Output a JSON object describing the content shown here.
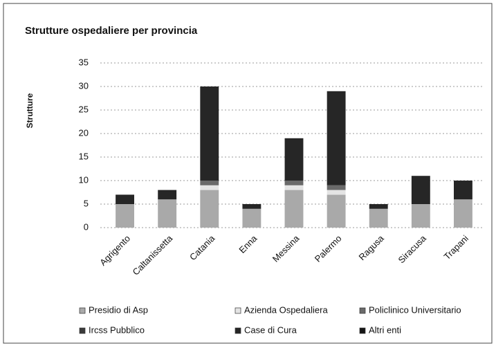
{
  "chart_data": {
    "type": "stacked_bar",
    "title": "Strutture ospedaliere per provincia",
    "y_label": "Strutture",
    "categories": [
      "Agrigento",
      "Caltanissetta",
      "Catania",
      "Enna",
      "Messina",
      "Palermo",
      "Ragusa",
      "Siracusa",
      "Trapani"
    ],
    "series": [
      {
        "name": "Presidio di Asp",
        "color": "#a9a9a9",
        "values": [
          5,
          6,
          8,
          4,
          8,
          7,
          4,
          5,
          6
        ]
      },
      {
        "name": "Azienda Ospedaliera",
        "color": "#e4e4e4",
        "values": [
          0,
          0,
          1,
          0,
          1,
          1,
          0,
          0,
          0
        ]
      },
      {
        "name": "Policlinico Universitario",
        "color": "#6a6a6a",
        "values": [
          0,
          0,
          1,
          0,
          1,
          1,
          0,
          0,
          0
        ]
      },
      {
        "name": "Ircss Pubblico",
        "color": "#3a3a3a",
        "values": [
          0,
          0,
          0,
          0,
          0,
          0,
          0,
          0,
          0
        ]
      },
      {
        "name": "Case di Cura",
        "color": "#262626",
        "values": [
          2,
          2,
          20,
          1,
          9,
          20,
          1,
          6,
          4
        ]
      },
      {
        "name": "Altri enti",
        "color": "#151515",
        "values": [
          0,
          0,
          0,
          0,
          0,
          0,
          0,
          0,
          0
        ]
      }
    ],
    "ylim": [
      0,
      35
    ],
    "yticks": [
      0,
      5,
      10,
      15,
      20,
      25,
      30,
      35
    ],
    "grid": true,
    "legend": "bottom"
  }
}
